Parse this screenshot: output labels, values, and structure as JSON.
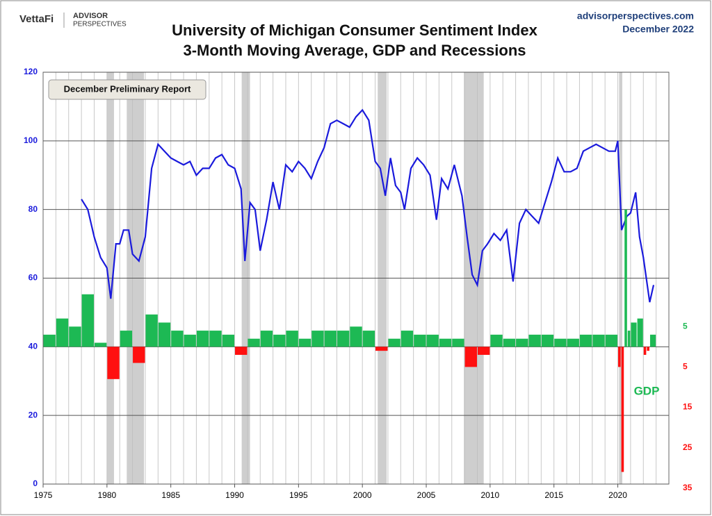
{
  "header": {
    "brand": "VettaFi",
    "partner": "ADVISOR",
    "partner_sub": "PERSPECTIVES",
    "site": "advisorperspectives.com",
    "date": "December 2022"
  },
  "chart_data": {
    "type": "line",
    "title": "University of Michigan Consumer Sentiment Index",
    "subtitle": "3-Month Moving Average, GDP and Recessions",
    "annotations": [
      "December Preliminary Report",
      "GDP"
    ],
    "xlim": [
      1975,
      2024
    ],
    "xticks": [
      1975,
      1980,
      1985,
      1990,
      1995,
      2000,
      2005,
      2010,
      2015,
      2020
    ],
    "ylim": [
      0,
      120
    ],
    "yticks": [
      0,
      20,
      40,
      60,
      80,
      100,
      120
    ],
    "y2lim": [
      -34,
      68
    ],
    "y2ticks": [
      5,
      {
        "value": -5,
        "label": "5"
      },
      {
        "value": -15,
        "label": "15"
      },
      {
        "value": -25,
        "label": "25"
      },
      {
        "value": -35,
        "label": "35"
      }
    ],
    "grid": true,
    "recessions": [
      [
        1980.0,
        1980.55
      ],
      [
        1981.55,
        1982.9
      ],
      [
        1990.55,
        1991.2
      ],
      [
        2001.2,
        2001.9
      ],
      [
        2007.95,
        2009.5
      ],
      [
        2020.1,
        2020.35
      ]
    ],
    "series": [
      {
        "name": "Sentiment 3-Month Moving Average",
        "color": "#1a1adc",
        "x": [
          1978.0,
          1978.5,
          1979.0,
          1979.5,
          1980.0,
          1980.3,
          1980.7,
          1981.0,
          1981.3,
          1981.7,
          1982.0,
          1982.5,
          1983.0,
          1983.5,
          1984.0,
          1984.5,
          1985.0,
          1985.5,
          1986.0,
          1986.5,
          1987.0,
          1987.5,
          1988.0,
          1988.5,
          1989.0,
          1989.5,
          1990.0,
          1990.5,
          1990.8,
          1991.2,
          1991.6,
          1992.0,
          1992.5,
          1993.0,
          1993.5,
          1994.0,
          1994.5,
          1995.0,
          1995.5,
          1996.0,
          1996.5,
          1997.0,
          1997.5,
          1998.0,
          1998.5,
          1999.0,
          1999.5,
          2000.0,
          2000.5,
          2001.0,
          2001.4,
          2001.8,
          2002.2,
          2002.6,
          2003.0,
          2003.3,
          2003.8,
          2004.3,
          2004.8,
          2005.3,
          2005.8,
          2006.2,
          2006.7,
          2007.2,
          2007.8,
          2008.2,
          2008.6,
          2009.0,
          2009.4,
          2009.8,
          2010.3,
          2010.8,
          2011.3,
          2011.8,
          2012.3,
          2012.8,
          2013.3,
          2013.8,
          2014.3,
          2014.8,
          2015.3,
          2015.8,
          2016.3,
          2016.8,
          2017.3,
          2017.8,
          2018.3,
          2018.8,
          2019.3,
          2019.8,
          2020.0,
          2020.3,
          2020.7,
          2021.0,
          2021.4,
          2021.7,
          2022.0,
          2022.5,
          2022.8
        ],
        "values": [
          83,
          80,
          72,
          66,
          63,
          54,
          70,
          70,
          74,
          74,
          67,
          65,
          72,
          92,
          99,
          97,
          95,
          94,
          93,
          94,
          90,
          92,
          92,
          95,
          96,
          93,
          92,
          86,
          65,
          82,
          80,
          68,
          77,
          88,
          80,
          93,
          91,
          94,
          92,
          89,
          94,
          98,
          105,
          106,
          105,
          104,
          107,
          109,
          106,
          94,
          92,
          84,
          95,
          87,
          85,
          80,
          92,
          95,
          93,
          90,
          77,
          89,
          86,
          93,
          84,
          72,
          61,
          58,
          68,
          70,
          73,
          71,
          74,
          59,
          76,
          80,
          78,
          76,
          82,
          88,
          95,
          91,
          91,
          92,
          97,
          98,
          99,
          98,
          97,
          97,
          100,
          74,
          78,
          79,
          85,
          72,
          66,
          53,
          58
        ]
      },
      {
        "name": "GDP",
        "type": "bar",
        "axis": "y2",
        "color": "#1db954",
        "negative_color": "#ff1010",
        "x": [
          1975,
          1976,
          1977,
          1978,
          1979,
          1980,
          1981,
          1982,
          1983,
          1984,
          1985,
          1986,
          1987,
          1988,
          1989,
          1990,
          1991,
          1992,
          1993,
          1994,
          1995,
          1996,
          1997,
          1998,
          1999,
          2000,
          2001,
          2002,
          2003,
          2004,
          2005,
          2006,
          2007,
          2008,
          2009,
          2010,
          2011,
          2012,
          2013,
          2014,
          2015,
          2016,
          2017,
          2018,
          2019,
          2020,
          2020.25,
          2020.5,
          2020.75,
          2021,
          2021.5,
          2022,
          2022.25,
          2022.5
        ],
        "values": [
          3,
          7,
          5,
          13,
          1,
          -8,
          4,
          -4,
          8,
          6,
          4,
          3,
          4,
          4,
          3,
          -2,
          2,
          4,
          3,
          4,
          2,
          4,
          4,
          4,
          5,
          4,
          -1,
          2,
          4,
          3,
          3,
          2,
          2,
          -5,
          -2,
          3,
          2,
          2,
          3,
          3,
          2,
          2,
          3,
          3,
          3,
          -5,
          -31,
          34,
          4,
          6,
          7,
          -2,
          -1,
          3
        ]
      }
    ]
  }
}
